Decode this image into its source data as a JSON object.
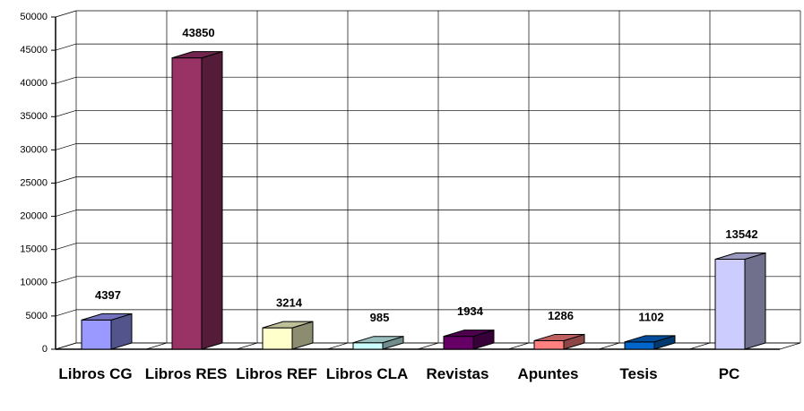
{
  "chart_data": {
    "type": "bar3d",
    "categories": [
      "Libros CG",
      "Libros RES",
      "Libros REF",
      "Libros CLA",
      "Revistas",
      "Apuntes",
      "Tesis",
      "PC"
    ],
    "values": [
      4397,
      43850,
      3214,
      985,
      1934,
      1286,
      1102,
      13542
    ],
    "colors": [
      "#9999ff",
      "#993366",
      "#ffffcc",
      "#ccffff",
      "#660066",
      "#ff8080",
      "#0066cc",
      "#ccccff"
    ],
    "ylim": [
      0,
      50000
    ],
    "yticks": [
      0,
      5000,
      10000,
      15000,
      20000,
      25000,
      30000,
      35000,
      40000,
      45000,
      50000
    ],
    "grid": true
  }
}
